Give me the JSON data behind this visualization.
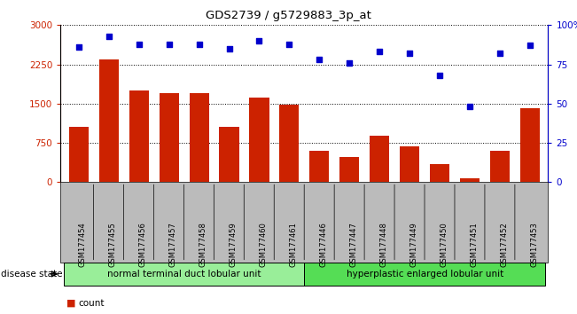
{
  "title": "GDS2739 / g5729883_3p_at",
  "categories": [
    "GSM177454",
    "GSM177455",
    "GSM177456",
    "GSM177457",
    "GSM177458",
    "GSM177459",
    "GSM177460",
    "GSM177461",
    "GSM177446",
    "GSM177447",
    "GSM177448",
    "GSM177449",
    "GSM177450",
    "GSM177451",
    "GSM177452",
    "GSM177453"
  ],
  "counts": [
    1050,
    2350,
    1750,
    1700,
    1700,
    1050,
    1620,
    1480,
    600,
    480,
    880,
    680,
    350,
    80,
    600,
    1420
  ],
  "percentiles": [
    86,
    93,
    88,
    88,
    88,
    85,
    90,
    88,
    78,
    76,
    83,
    82,
    68,
    48,
    82,
    87
  ],
  "group1_label": "normal terminal duct lobular unit",
  "group2_label": "hyperplastic enlarged lobular unit",
  "group1_count": 8,
  "group2_count": 8,
  "bar_color": "#cc2200",
  "dot_color": "#0000cc",
  "group1_bg": "#99ee99",
  "group2_bg": "#55dd55",
  "xlabel_bg": "#bbbbbb",
  "ylim_left": [
    0,
    3000
  ],
  "ylim_right": [
    0,
    100
  ],
  "yticks_left": [
    0,
    750,
    1500,
    2250,
    3000
  ],
  "yticks_right": [
    0,
    25,
    50,
    75,
    100
  ],
  "legend_count_color": "#cc2200",
  "legend_pct_color": "#0000cc",
  "disease_state_label": "disease state"
}
